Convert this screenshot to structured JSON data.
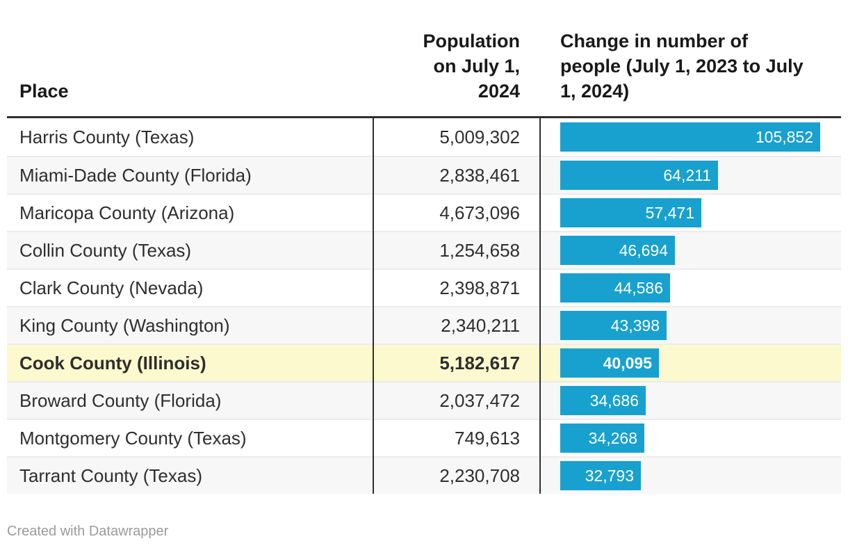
{
  "chart_data": {
    "type": "table",
    "columns": [
      {
        "label": "Place",
        "align": "left"
      },
      {
        "label": "Population on July 1, 2024",
        "align": "right"
      },
      {
        "label": "Change in number of people (July 1, 2023 to July 1, 2024)",
        "align": "left",
        "format": "bar"
      }
    ],
    "rows": [
      {
        "place": "Harris County (Texas)",
        "population": 5009302,
        "population_label": "5,009,302",
        "change": 105852,
        "change_label": "105,852",
        "highlighted": false
      },
      {
        "place": "Miami-Dade County (Florida)",
        "population": 2838461,
        "population_label": "2,838,461",
        "change": 64211,
        "change_label": "64,211",
        "highlighted": false
      },
      {
        "place": "Maricopa County (Arizona)",
        "population": 4673096,
        "population_label": "4,673,096",
        "change": 57471,
        "change_label": "57,471",
        "highlighted": false
      },
      {
        "place": "Collin County (Texas)",
        "population": 1254658,
        "population_label": "1,254,658",
        "change": 46694,
        "change_label": "46,694",
        "highlighted": false
      },
      {
        "place": "Clark County (Nevada)",
        "population": 2398871,
        "population_label": "2,398,871",
        "change": 44586,
        "change_label": "44,586",
        "highlighted": false
      },
      {
        "place": "King County (Washington)",
        "population": 2340211,
        "population_label": "2,340,211",
        "change": 43398,
        "change_label": "43,398",
        "highlighted": false
      },
      {
        "place": "Cook County (Illinois)",
        "population": 5182617,
        "population_label": "5,182,617",
        "change": 40095,
        "change_label": "40,095",
        "highlighted": true
      },
      {
        "place": "Broward County (Florida)",
        "population": 2037472,
        "population_label": "2,037,472",
        "change": 34686,
        "change_label": "34,686",
        "highlighted": false
      },
      {
        "place": "Montgomery County (Texas)",
        "population": 749613,
        "population_label": "749,613",
        "change": 34268,
        "change_label": "34,268",
        "highlighted": false
      },
      {
        "place": "Tarrant County (Texas)",
        "population": 2230708,
        "population_label": "2,230,708",
        "change": 32793,
        "change_label": "32,793",
        "highlighted": false
      }
    ],
    "bar_axis": {
      "min": 0,
      "max_value": 105852
    },
    "legend_position": "none",
    "grid": "off"
  },
  "footer": {
    "credit": "Created with Datawrapper"
  },
  "colors": {
    "bar": "#18a1ce",
    "bar_label": "#ffffff",
    "highlight_row": "#fbf9cd",
    "alt_row": "#f7f7f7",
    "row_text": "#2e2e2e",
    "header_text": "#191919",
    "header_rule": "#2f2f2f",
    "divider": "#2f2f2f",
    "separator": "#ececec",
    "credit_text": "#9b9b9b"
  }
}
